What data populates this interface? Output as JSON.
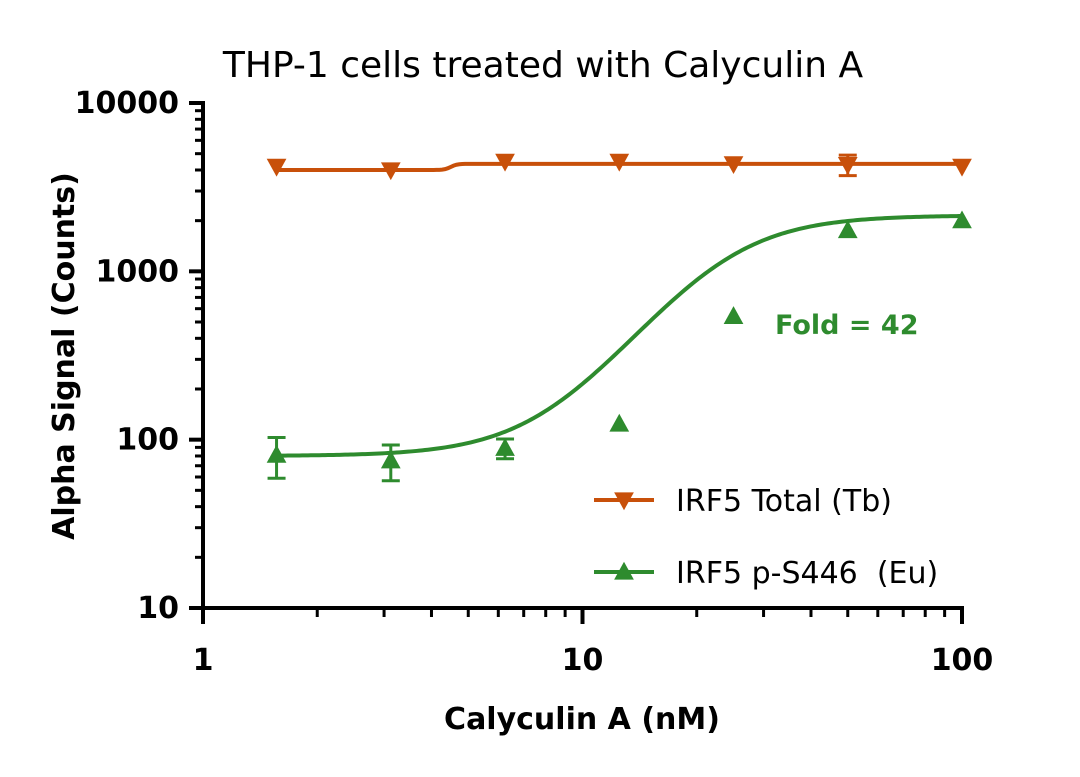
{
  "chart_data": {
    "type": "scatter",
    "title": "THP-1 cells treated with Calyculin A",
    "xlabel": "Calyculin A (nM)",
    "ylabel": "Alpha Signal (Counts)",
    "xscale": "log",
    "yscale": "log",
    "xlim": [
      1,
      100
    ],
    "ylim": [
      10,
      10000
    ],
    "xticks": [
      1,
      10,
      100
    ],
    "xtick_labels": [
      "1",
      "10",
      "100"
    ],
    "yticks": [
      10,
      100,
      1000,
      10000
    ],
    "ytick_labels": [
      "10",
      "100",
      "1000",
      "10000"
    ],
    "grid": false,
    "legend_position": "bottom-right",
    "series": [
      {
        "name": "IRF5 Total (Tb)",
        "color": "#C8500A",
        "marker": "triangle-down",
        "x": [
          1.5625,
          3.125,
          6.25,
          12.5,
          25,
          50,
          100
        ],
        "y": [
          4200,
          4000,
          4500,
          4500,
          4350,
          4300,
          4200
        ],
        "error": [
          0,
          0,
          0,
          0,
          0,
          600,
          0
        ],
        "fit": {
          "type": "step",
          "low": 4000,
          "high": 4350,
          "x_break": 4.5
        }
      },
      {
        "name": "IRF5 p-S446  (Eu)",
        "color": "#2E8B2E",
        "marker": "triangle-up",
        "x": [
          1.5625,
          3.125,
          6.25,
          12.5,
          25,
          50,
          100
        ],
        "y": [
          81,
          75,
          89,
          124,
          540,
          1750,
          2000
        ],
        "error": [
          22,
          18,
          12,
          0,
          0,
          0,
          0
        ],
        "fit": {
          "type": "4PL",
          "bottom": 80,
          "top": 2150,
          "ec50": 23,
          "hill": 3.2
        }
      }
    ],
    "annotations": [
      {
        "text": "Fold = 42",
        "color": "#2E8B2E"
      }
    ]
  }
}
